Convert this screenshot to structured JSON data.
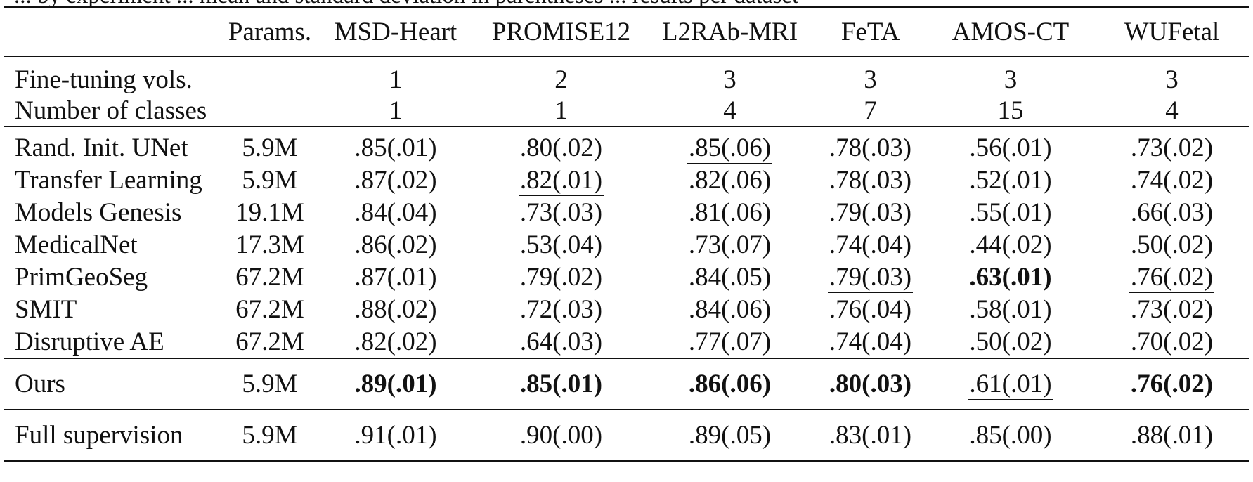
{
  "caption_fragment": "... by experiment ... mean and standard deviation in parentheses ... results per dataset",
  "columns": [
    "",
    "Params.",
    "MSD-Heart",
    "PROMISE12",
    "L2RAb-MRI",
    "FeTA",
    "AMOS-CT",
    "WUFetal"
  ],
  "info_rows": [
    {
      "label": "Fine-tuning vols.",
      "values": [
        "1",
        "2",
        "3",
        "3",
        "3",
        "3"
      ]
    },
    {
      "label": "Number of classes",
      "values": [
        "1",
        "1",
        "4",
        "7",
        "15",
        "4"
      ]
    }
  ],
  "methods": [
    {
      "label": "Rand. Init. UNet",
      "params": "5.9M",
      "values": [
        ".85(.01)",
        ".80(.02)",
        ".85(.06)",
        ".78(.03)",
        ".56(.01)",
        ".73(.02)"
      ]
    },
    {
      "label": "Transfer Learning",
      "params": "5.9M",
      "values": [
        ".87(.02)",
        ".82(.01)",
        ".82(.06)",
        ".78(.03)",
        ".52(.01)",
        ".74(.02)"
      ]
    },
    {
      "label": "Models Genesis",
      "params": "19.1M",
      "values": [
        ".84(.04)",
        ".73(.03)",
        ".81(.06)",
        ".79(.03)",
        ".55(.01)",
        ".66(.03)"
      ]
    },
    {
      "label": "MedicalNet",
      "params": "17.3M",
      "values": [
        ".86(.02)",
        ".53(.04)",
        ".73(.07)",
        ".74(.04)",
        ".44(.02)",
        ".50(.02)"
      ]
    },
    {
      "label": "PrimGeoSeg",
      "params": "67.2M",
      "values": [
        ".87(.01)",
        ".79(.02)",
        ".84(.05)",
        ".79(.03)",
        ".63(.01)",
        ".76(.02)"
      ]
    },
    {
      "label": "SMIT",
      "params": "67.2M",
      "values": [
        ".88(.02)",
        ".72(.03)",
        ".84(.06)",
        ".76(.04)",
        ".58(.01)",
        ".73(.02)"
      ]
    },
    {
      "label": "Disruptive AE",
      "params": "67.2M",
      "values": [
        ".82(.02)",
        ".64(.03)",
        ".77(.07)",
        ".74(.04)",
        ".50(.02)",
        ".70(.02)"
      ]
    }
  ],
  "ours": {
    "label": "Ours",
    "params": "5.9M",
    "values": [
      ".89(.01)",
      ".85(.01)",
      ".86(.06)",
      ".80(.03)",
      ".61(.01)",
      ".76(.02)"
    ]
  },
  "full": {
    "label": "Full supervision",
    "params": "5.9M",
    "values": [
      ".91(.01)",
      ".90(.00)",
      ".89(.05)",
      ".83(.01)",
      ".85(.00)",
      ".88(.01)"
    ]
  }
}
